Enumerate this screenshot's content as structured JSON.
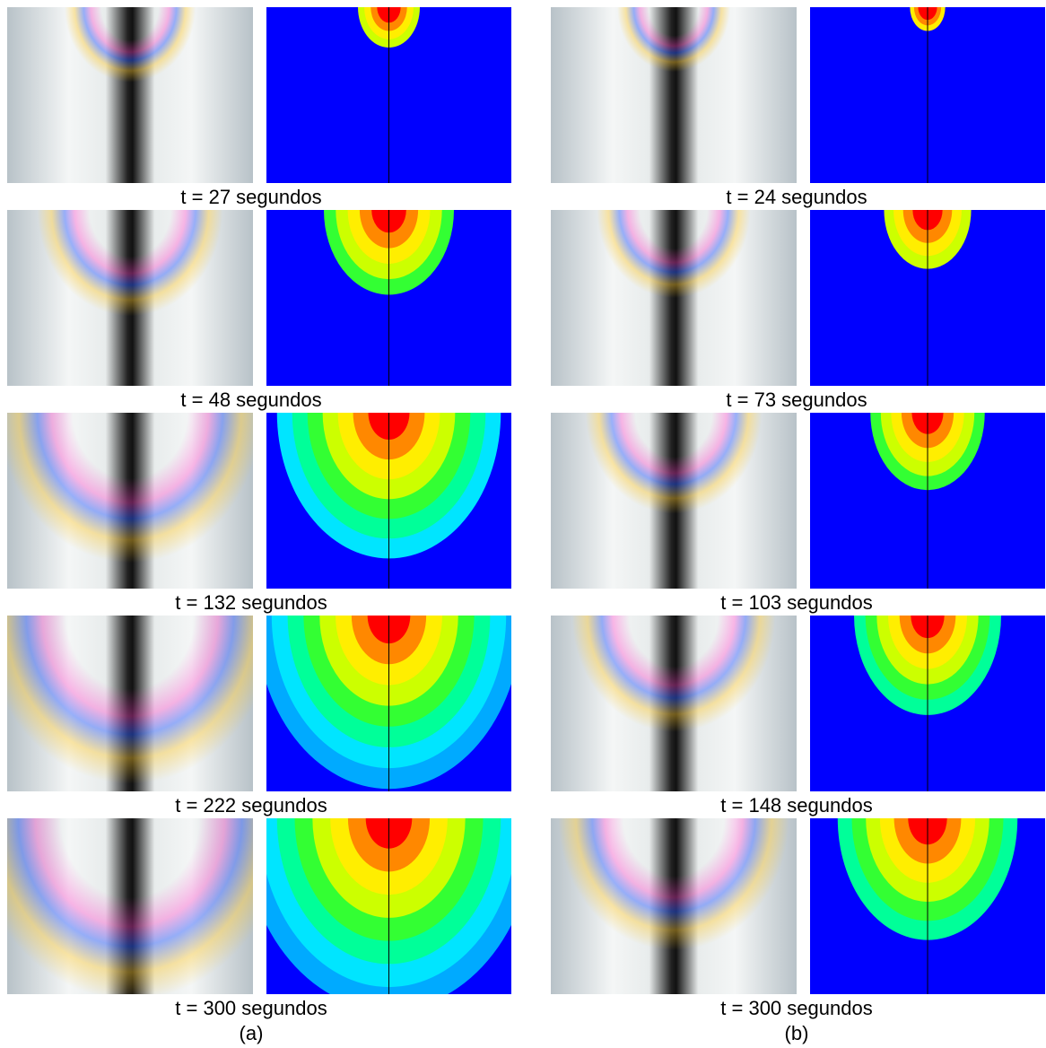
{
  "panels": [
    {
      "label": "(a)",
      "captions": [
        "t = 27 segundos",
        "t = 48 segundos",
        "t = 132 segundos",
        "t = 222 segundos",
        "t = 300 segundos"
      ]
    },
    {
      "label": "(b)",
      "captions": [
        "t = 24 segundos",
        "t = 73 segundos",
        "t = 103 segundos",
        "t = 148 segundos",
        "t = 300 segundos"
      ]
    }
  ]
}
